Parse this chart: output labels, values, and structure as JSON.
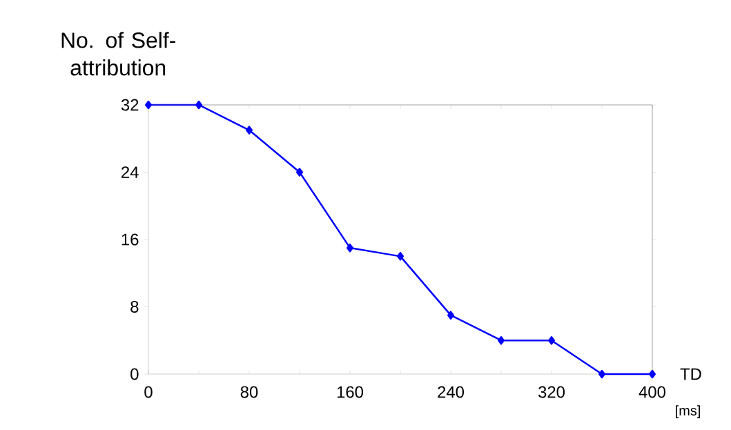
{
  "chart_data": {
    "type": "line",
    "ylabel": "No. of Self-attribution",
    "xlabel": "TD",
    "x": [
      0,
      40,
      80,
      120,
      160,
      200,
      240,
      280,
      320,
      360,
      400
    ],
    "series": [
      {
        "color": "#0000ff",
        "values": [
          32,
          32,
          29,
          24,
          15,
          14,
          7,
          4,
          4,
          0,
          0
        ]
      }
    ],
    "xlim": [
      0,
      400
    ],
    "ylim": [
      0,
      32
    ],
    "xticks": [
      0,
      {
        "value": 40,
        "label": null
      },
      80,
      {
        "value": 120,
        "label": null
      },
      160,
      {
        "value": 200,
        "label": null
      },
      240,
      {
        "value": 280,
        "label": null
      },
      320,
      {
        "value": 360,
        "label": null
      },
      400
    ],
    "yticks": [
      0,
      8,
      16,
      24,
      32
    ],
    "marker": "diamond",
    "line_style": "solid",
    "annotations": [
      "[ms]"
    ]
  }
}
